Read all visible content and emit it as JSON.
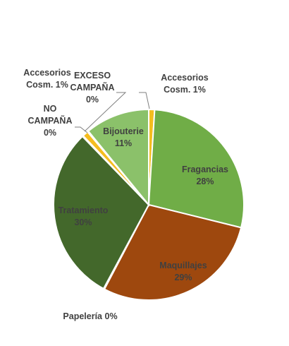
{
  "chart_data": {
    "type": "pie",
    "title": "",
    "slices": [
      {
        "label": "Accesorios Cosm.",
        "value": 1,
        "display": "1%",
        "color": "#f5bd1f"
      },
      {
        "label": "Fragancias",
        "value": 28,
        "display": "28%",
        "color": "#70ad47"
      },
      {
        "label": "Maquillajes",
        "value": 29,
        "display": "29%",
        "color": "#9e480e"
      },
      {
        "label": "Papelería",
        "value": 0,
        "display": "0%",
        "color": "#c9c9c9"
      },
      {
        "label": "Tratamiento",
        "value": 30,
        "display": "30%",
        "color": "#43682b"
      },
      {
        "label": "NO CAMPAÑA",
        "value": 0,
        "display": "0%",
        "color": "#a5a5a5"
      },
      {
        "label": "Accesorios Cosm.",
        "value": 1,
        "display": "1%",
        "color": "#f5bd1f"
      },
      {
        "label": "EXCESO CAMPAÑA",
        "value": 0,
        "display": "0%",
        "color": "#a5a5a5"
      },
      {
        "label": "Bijouterie",
        "value": 11,
        "display": "11%",
        "color": "#8bc16a"
      }
    ],
    "legend": "none"
  }
}
